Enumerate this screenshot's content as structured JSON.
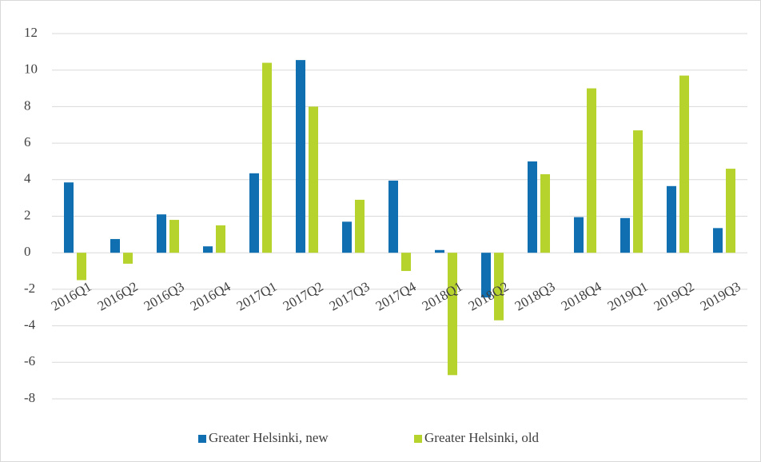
{
  "chart_data": {
    "type": "bar",
    "categories": [
      "2016Q1",
      "2016Q2",
      "2016Q3",
      "2016Q4",
      "2017Q1",
      "2017Q2",
      "2017Q3",
      "2017Q4",
      "2018Q1",
      "2018Q2",
      "2018Q3",
      "2018Q4",
      "2019Q1",
      "2019Q2",
      "2019Q3"
    ],
    "series": [
      {
        "name": "Greater Helsinki, new",
        "color": "#0f6fb0",
        "values": [
          3.85,
          0.75,
          2.1,
          0.35,
          4.35,
          10.55,
          1.7,
          3.95,
          0.15,
          -2.45,
          5.0,
          1.95,
          1.9,
          3.65,
          1.35
        ]
      },
      {
        "name": "Greater Helsinki, old",
        "color": "#b6d22c",
        "values": [
          -1.5,
          -0.6,
          1.8,
          1.5,
          10.4,
          8.0,
          2.9,
          -1.0,
          -6.7,
          -3.7,
          4.3,
          9.0,
          6.7,
          9.7,
          4.6
        ]
      }
    ],
    "ylim": [
      -8,
      12
    ],
    "yticks": [
      -8,
      -6,
      -4,
      -2,
      0,
      2,
      4,
      6,
      8,
      10,
      12
    ],
    "grid": true,
    "legend": "bottom"
  }
}
